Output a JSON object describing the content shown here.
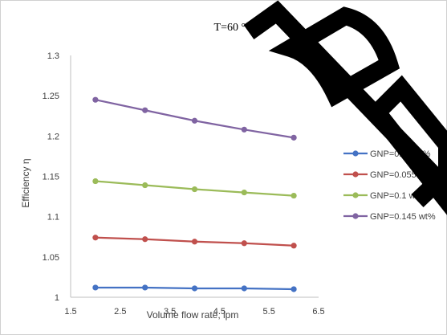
{
  "chart_data": {
    "type": "line",
    "title": "T=60 °C",
    "xlabel": "Volume flow rate, lpm",
    "ylabel": "Efficiency   η",
    "xlim": [
      1.5,
      6.5
    ],
    "ylim": [
      1,
      1.3
    ],
    "xticks": [
      "1.5",
      "2.5",
      "3.5",
      "4.5",
      "5.5",
      "6.5"
    ],
    "yticks": [
      "1",
      "1.05",
      "1.1",
      "1.15",
      "1.2",
      "1.25",
      "1.3"
    ],
    "grid": false,
    "legend_position": "right",
    "x": [
      2,
      3,
      4,
      5,
      6
    ],
    "series": [
      {
        "name": "GNP=0.01 wt%",
        "color": "#4472C4",
        "values": [
          1.012,
          1.012,
          1.011,
          1.011,
          1.01
        ]
      },
      {
        "name": "GNP=0.055 wt%",
        "color": "#C0504D",
        "values": [
          1.074,
          1.072,
          1.069,
          1.067,
          1.064
        ]
      },
      {
        "name": "GNP=0.1 wt%",
        "color": "#9BBB59",
        "values": [
          1.144,
          1.139,
          1.134,
          1.13,
          1.126
        ]
      },
      {
        "name": "GNP=0.145 wt%",
        "color": "#8064A2",
        "values": [
          1.245,
          1.232,
          1.219,
          1.208,
          1.198
        ]
      }
    ]
  }
}
